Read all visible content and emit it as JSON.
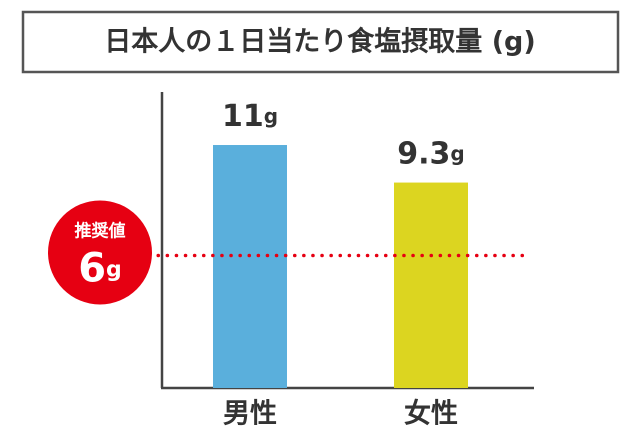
{
  "chart_data": {
    "type": "bar",
    "title": "日本人の１日当たり食塩摂取量 (g)",
    "categories": [
      "男性",
      "女性"
    ],
    "series": [
      {
        "name": null,
        "colors": [
          "#5aafdc",
          "#dcd520"
        ],
        "values": [
          11,
          9.3
        ],
        "value_labels": [
          "11g",
          "9.3g"
        ]
      }
    ],
    "ylim": [
      0,
      13.4
    ],
    "reference_line": {
      "value": 6,
      "label": "推奨値",
      "value_label": "6g",
      "color": "#e60012"
    }
  }
}
